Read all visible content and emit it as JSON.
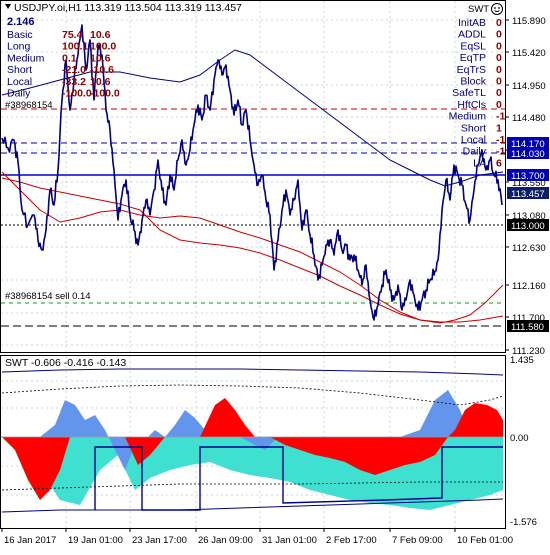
{
  "main_chart": {
    "symbol_line": "USDJPY.oi,H1  113.319 113.504 113.319 113.457",
    "spread_value": "2.146",
    "info_rows": [
      {
        "label": "Basic",
        "v1": "75.4",
        "v2": "10.6"
      },
      {
        "label": "Long",
        "v1": "100.1",
        "v2": "100.0"
      },
      {
        "label": "Medium",
        "v1": "0.1",
        "v2": "10.6"
      },
      {
        "label": "Short",
        "v1": "-21.0",
        "v2": "-10.6"
      },
      {
        "label": "Local",
        "v1": "-33.2",
        "v2": "10.6"
      },
      {
        "label": "Daily",
        "v1": "-100.0",
        "v2": "-100.0"
      }
    ],
    "order_tag": "#38968154",
    "sell_label": "#38968154 sell 0.14",
    "indicator_name": "SWT",
    "right_panel": [
      {
        "label": "InitAB",
        "value": "0"
      },
      {
        "label": "ADDL",
        "value": "0"
      },
      {
        "label": "EqSL",
        "value": "0"
      },
      {
        "label": "EqTP",
        "value": "0"
      },
      {
        "label": "EqTrS",
        "value": "0"
      },
      {
        "label": "Block",
        "value": "0"
      },
      {
        "label": "SafeTL",
        "value": "0"
      },
      {
        "label": "HftCls",
        "value": "0"
      },
      {
        "label": "Medium",
        "value": "-1"
      },
      {
        "label": "Short",
        "value": "1"
      },
      {
        "label": "Local",
        "value": "-1"
      },
      {
        "label": "Daily",
        "value": "-1"
      },
      {
        "label": "LA",
        "value": "6"
      }
    ],
    "price_axis": [
      "115.890",
      "115.420",
      "114.950",
      "114.480",
      "114.010",
      "113.550",
      "113.080",
      "112.630",
      "112.160",
      "111.700",
      "111.230"
    ],
    "price_tags": [
      {
        "text": "114.170",
        "color": "#0000b4"
      },
      {
        "text": "114.030",
        "color": "#0000b4"
      },
      {
        "text": "113.700",
        "color": "#0000b4"
      },
      {
        "text": "113.457",
        "color": "#0c1d6a"
      },
      {
        "text": "113.000",
        "color": "#000000"
      },
      {
        "text": "111.580",
        "color": "#000000"
      }
    ]
  },
  "sub_chart": {
    "title": "SWT -0.606 -0.416 -0.143",
    "axis": [
      "1.435",
      "0.00",
      "-1.576"
    ]
  },
  "time_axis": [
    "16 Jan 2017",
    "19 Jan 01:00",
    "23 Jan 17:00",
    "26 Jan 09:00",
    "31 Jan 01:00",
    "2 Feb 17:00",
    "7 Feb 09:00",
    "10 Feb 01:00"
  ],
  "colors": {
    "price_line": "#000080",
    "red_line": "#cc0000",
    "cyan_fill": "#40e0d0",
    "blue_fill": "#6495ed",
    "red_fill": "#ff0000",
    "bear_level": "#0000cd"
  }
}
